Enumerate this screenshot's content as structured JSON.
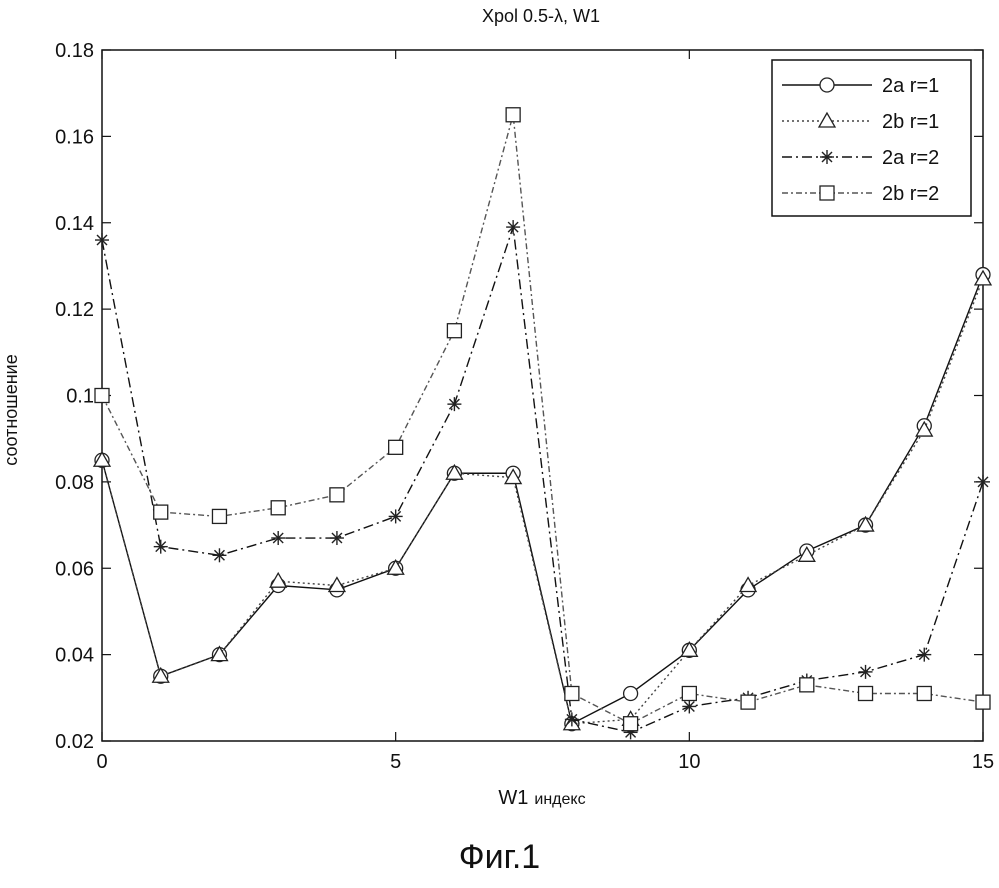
{
  "chart_data": {
    "type": "line",
    "title": "Xpol 0.5-λ, W1",
    "xlabel_main": "W1",
    "xlabel_sub": "индекс",
    "ylabel": "соотношение",
    "xlim": [
      0,
      15
    ],
    "ylim": [
      0.02,
      0.18
    ],
    "xticks": [
      0,
      5,
      10,
      15
    ],
    "yticks": [
      0.02,
      0.04,
      0.06,
      0.08,
      0.1,
      0.12,
      0.14,
      0.16,
      0.18
    ],
    "ytick_labels": [
      "0.02",
      "0.04",
      "0.06",
      "0.08",
      "0.1",
      "0.12",
      "0.14",
      "0.16",
      "0.18"
    ],
    "grid": false,
    "legend_position": "top-right",
    "x": [
      0,
      1,
      2,
      3,
      4,
      5,
      6,
      7,
      8,
      9,
      10,
      11,
      12,
      13,
      14,
      15
    ],
    "series": [
      {
        "name": "2a r=1",
        "marker": "circle",
        "dash": "solid",
        "values": [
          0.085,
          0.035,
          0.04,
          0.056,
          0.055,
          0.06,
          0.082,
          0.082,
          0.024,
          0.031,
          0.041,
          0.055,
          0.064,
          0.07,
          0.093,
          0.128
        ]
      },
      {
        "name": "2b r=1",
        "marker": "triangle",
        "dash": "dotted",
        "values": [
          0.085,
          0.035,
          0.04,
          0.057,
          0.056,
          0.06,
          0.082,
          0.081,
          0.024,
          0.025,
          0.041,
          0.056,
          0.063,
          0.07,
          0.092,
          0.127
        ]
      },
      {
        "name": "2a r=2",
        "marker": "star",
        "dash": "dashdot",
        "values": [
          0.136,
          0.065,
          0.063,
          0.067,
          0.067,
          0.072,
          0.098,
          0.139,
          0.025,
          0.022,
          0.028,
          0.03,
          0.034,
          0.036,
          0.04,
          0.08
        ]
      },
      {
        "name": "2b r=2",
        "marker": "square",
        "dash": "dashdot-light",
        "values": [
          0.1,
          0.073,
          0.072,
          0.074,
          0.077,
          0.088,
          0.115,
          0.165,
          0.031,
          0.024,
          0.031,
          0.029,
          0.033,
          0.031,
          0.031,
          0.029
        ]
      }
    ]
  },
  "figure_caption": "Фиг.1"
}
